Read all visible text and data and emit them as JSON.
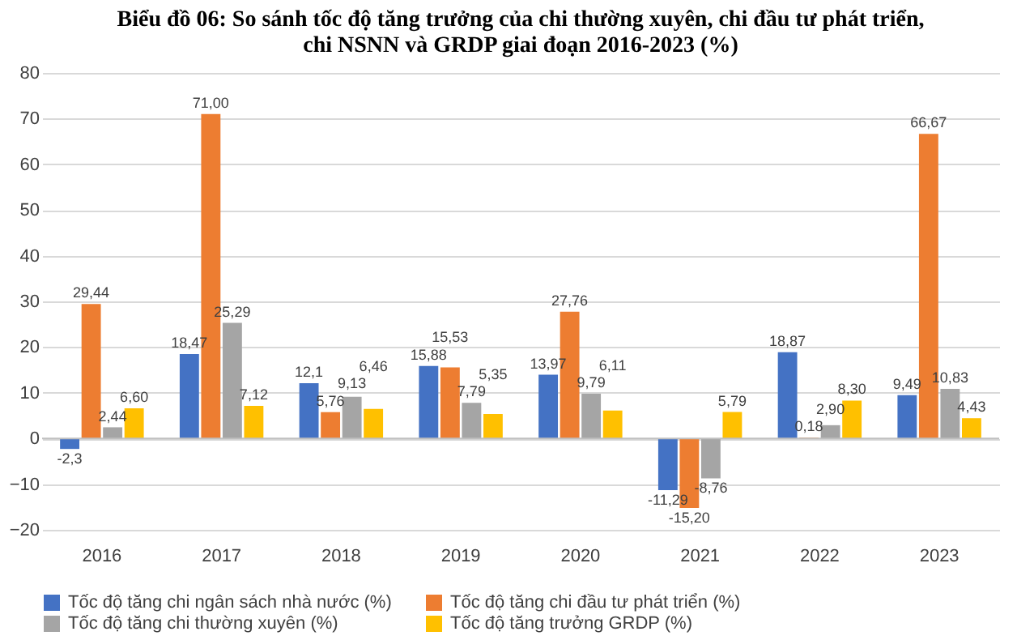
{
  "chart_data": {
    "type": "bar",
    "title": "Biểu đồ 06: So sánh tốc độ tăng trưởng của chi thường xuyên, chi đầu tư phát triển,\nchi NSNN và GRDP giai đoạn 2016-2023 (%)",
    "categories": [
      "2016",
      "2017",
      "2018",
      "2019",
      "2020",
      "2021",
      "2022",
      "2023"
    ],
    "series": [
      {
        "name": "Tốc độ tăng chi ngân sách nhà nước (%)",
        "color": "#4472c4",
        "values": [
          -2.3,
          18.47,
          12.1,
          15.88,
          13.97,
          -11.29,
          18.87,
          9.49
        ],
        "value_labels": [
          "-2,3",
          "18,47",
          "12,1",
          "15,88",
          "13,97",
          "-11,29",
          "18,87",
          "9,49"
        ]
      },
      {
        "name": "Tốc độ tăng chi đầu tư phát triển (%)",
        "color": "#ed7d31",
        "values": [
          29.44,
          71.0,
          5.76,
          15.53,
          27.76,
          -15.2,
          0.18,
          66.67
        ],
        "value_labels": [
          "29,44",
          "71,00",
          "5,76",
          "15,53",
          "27,76",
          "-15,20",
          "0,18",
          "66,67"
        ]
      },
      {
        "name": "Tốc độ tăng chi thường xuyên (%)",
        "color": "#a5a5a5",
        "values": [
          2.44,
          25.29,
          9.13,
          7.79,
          9.79,
          -8.76,
          2.9,
          10.83
        ],
        "value_labels": [
          "2,44",
          "25,29",
          "9,13",
          "7,79",
          "9,79",
          "-8,76",
          "2,90",
          "10,83"
        ]
      },
      {
        "name": "Tốc độ tăng trưởng GRDP (%)",
        "color": "#ffc000",
        "values": [
          6.6,
          7.12,
          6.46,
          5.35,
          6.11,
          5.79,
          8.3,
          4.43
        ],
        "value_labels": [
          "6,60",
          "7,12",
          "6,46",
          "5,35",
          "6,11",
          "5,79",
          "8,30",
          "4,43"
        ]
      }
    ],
    "ylim": [
      -20,
      80
    ],
    "yticks": [
      -20,
      -10,
      0,
      10,
      20,
      30,
      40,
      50,
      60,
      70,
      80
    ],
    "grid": "y",
    "legend": "bottom"
  }
}
